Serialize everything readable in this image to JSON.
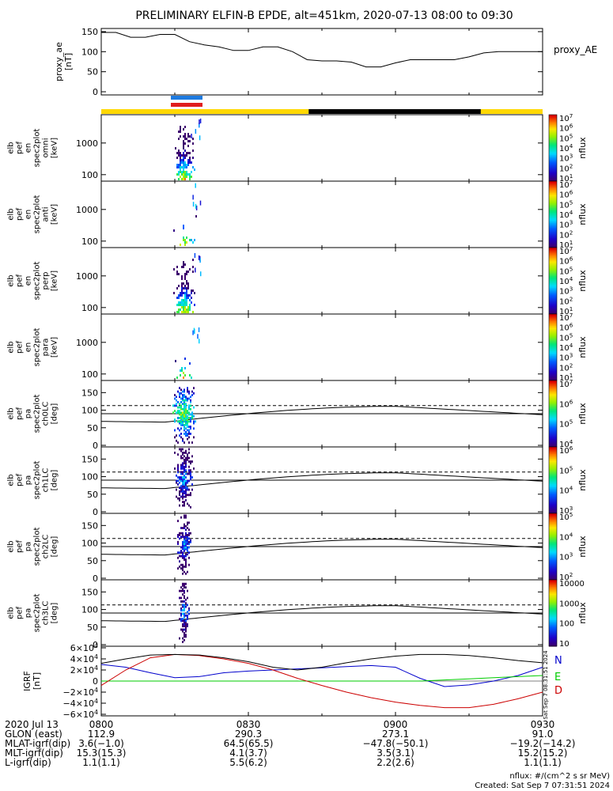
{
  "title": "PRELIMINARY ELFIN-B EPDE, alt=451km, 2020-07-13 08:00 to 09:30",
  "colors": {
    "sun_yellow": "#FFD800",
    "shadow_black": "#000000",
    "science_blue": "#1E7BE0",
    "science_red": "#E01E1E",
    "line_black": "#000000",
    "grf_north": "#0000CC",
    "grf_east": "#00CC00",
    "grf_down": "#CC0000"
  },
  "chart_data": [
    {
      "type": "line",
      "name": "proxy_ae",
      "ylabel": "proxy_ae\n[nT]",
      "legend": "proxy_AE",
      "ylim": [
        0,
        150
      ],
      "yticks": [
        "0",
        "50",
        "100",
        "150"
      ],
      "x_minutes": [
        0,
        3,
        6,
        9,
        12,
        15,
        18,
        21,
        24,
        27,
        30,
        33,
        36,
        39,
        42,
        45,
        48,
        51,
        54,
        57,
        60,
        63,
        66,
        69,
        72,
        75,
        78,
        81,
        84,
        87,
        90
      ],
      "values": [
        148,
        148,
        136,
        136,
        143,
        143,
        125,
        117,
        112,
        103,
        103,
        112,
        112,
        100,
        80,
        77,
        77,
        74,
        62,
        62,
        72,
        80,
        80,
        80,
        80,
        87,
        97,
        100,
        100,
        100,
        100
      ]
    },
    {
      "type": "heatmap",
      "name": "elb_pef_en_spec2plot_omni",
      "ylabel": "elb\npef\nen\nspec2plot\nomni\n[keV]",
      "yscale": "log",
      "yticks": [
        "100",
        "1000"
      ],
      "colorbar_label": "nflux",
      "colorbar_ticks": [
        "10^1",
        "10^2",
        "10^3",
        "10^4",
        "10^5",
        "10^6",
        "10^7"
      ]
    },
    {
      "type": "heatmap",
      "name": "elb_pef_en_spec2plot_anti",
      "ylabel": "elb\npef\nen\nspec2plot\nanti\n[keV]",
      "yscale": "log",
      "yticks": [
        "100",
        "1000"
      ],
      "colorbar_label": "nflux",
      "colorbar_ticks": [
        "10^1",
        "10^2",
        "10^3",
        "10^4",
        "10^5",
        "10^6",
        "10^7"
      ]
    },
    {
      "type": "heatmap",
      "name": "elb_pef_en_spec2plot_perp",
      "ylabel": "elb\npef\nen\nspec2plot\nperp\n[keV]",
      "yscale": "log",
      "yticks": [
        "100",
        "1000"
      ],
      "colorbar_label": "nflux",
      "colorbar_ticks": [
        "10^1",
        "10^2",
        "10^3",
        "10^4",
        "10^5",
        "10^6",
        "10^7"
      ]
    },
    {
      "type": "heatmap",
      "name": "elb_pef_en_spec2plot_para",
      "ylabel": "elb\npef\nen\nspec2plot\npara\n[keV]",
      "yscale": "log",
      "yticks": [
        "100",
        "1000"
      ],
      "colorbar_label": "nflux",
      "colorbar_ticks": [
        "10^1",
        "10^2",
        "10^3",
        "10^4",
        "10^5",
        "10^6",
        "10^7"
      ]
    },
    {
      "type": "heatmap",
      "name": "elb_pef_pa_spec2plot_ch0LC",
      "ylabel": "elb\npef\npa\nspec2plot\nch0LC\n[deg]",
      "ylim": [
        0,
        180
      ],
      "yticks": [
        "0",
        "50",
        "100",
        "150"
      ],
      "colorbar_label": "nflux",
      "colorbar_ticks": [
        "10^4",
        "10^5",
        "10^6",
        "10^7"
      ]
    },
    {
      "type": "heatmap",
      "name": "elb_pef_pa_spec2plot_ch1LC",
      "ylabel": "elb\npef\npa\nspec2plot\nch1LC\n[deg]",
      "ylim": [
        0,
        180
      ],
      "yticks": [
        "0",
        "50",
        "100",
        "150"
      ],
      "colorbar_label": "nflux",
      "colorbar_ticks": [
        "10^3",
        "10^4",
        "10^5",
        "10^6"
      ]
    },
    {
      "type": "heatmap",
      "name": "elb_pef_pa_spec2plot_ch2LC",
      "ylabel": "elb\npef\npa\nspec2plot\nch2LC\n[deg]",
      "ylim": [
        0,
        180
      ],
      "yticks": [
        "0",
        "50",
        "100",
        "150"
      ],
      "colorbar_label": "nflux",
      "colorbar_ticks": [
        "10^2",
        "10^3",
        "10^4",
        "10^5"
      ]
    },
    {
      "type": "heatmap",
      "name": "elb_pef_pa_spec2plot_ch3LC",
      "ylabel": "elb\npef\npa\nspec2plot\nch3LC\n[deg]",
      "ylim": [
        0,
        180
      ],
      "yticks": [
        "0",
        "50",
        "100",
        "150"
      ],
      "colorbar_label": "nflux",
      "colorbar_ticks": [
        "10",
        "100",
        "1000",
        "10000"
      ]
    },
    {
      "type": "line",
      "name": "IGRF",
      "ylabel": "IGRF\n[nT]",
      "ylim": [
        -60000,
        60000
      ],
      "yticks": [
        "6×10^4",
        "4×10^4",
        "2×10^4",
        "0",
        "−2×10^4",
        "−4×10^4",
        "−6×10^4"
      ],
      "legend": [
        "N",
        "E",
        "D"
      ],
      "x_minutes": [
        0,
        5,
        10,
        15,
        20,
        25,
        30,
        35,
        40,
        45,
        50,
        55,
        60,
        65,
        70,
        75,
        80,
        85,
        90
      ],
      "series": [
        {
          "name": "N",
          "values": [
            30000,
            25000,
            15000,
            6000,
            8000,
            15000,
            18000,
            20000,
            22000,
            24000,
            26000,
            28000,
            25000,
            5000,
            -10000,
            -7000,
            0,
            10000,
            25000
          ]
        },
        {
          "name": "E",
          "values": [
            0,
            0,
            0,
            0,
            0,
            0,
            0,
            0,
            0,
            0,
            0,
            0,
            0,
            0,
            2000,
            4000,
            6000,
            8000,
            10000
          ]
        },
        {
          "name": "D",
          "values": [
            -8000,
            20000,
            42000,
            48000,
            46000,
            40000,
            32000,
            20000,
            5000,
            -8000,
            -20000,
            -30000,
            -38000,
            -44000,
            -48000,
            -48000,
            -42000,
            -32000,
            -20000
          ]
        },
        {
          "name": "",
          "values": [
            32000,
            40000,
            47000,
            48000,
            47000,
            42000,
            35000,
            25000,
            20000,
            25000,
            33000,
            40000,
            45000,
            48000,
            48000,
            46000,
            42000,
            37000,
            33000
          ]
        }
      ]
    }
  ],
  "side_label_right": [
    "Sat Sep  7 08:31:51 2024"
  ],
  "x_axis": {
    "ticks": [
      "0800",
      "0830",
      "0900",
      "0930"
    ],
    "rows": [
      {
        "label": "2020 Jul 13",
        "values": [
          "0800",
          "0830",
          "0900",
          "0930"
        ]
      },
      {
        "label": "GLON (east)",
        "values": [
          "112.9",
          "290.3",
          "273.1",
          "91.0"
        ]
      },
      {
        "label": "MLAT-igrf(dip)",
        "values": [
          "3.6(−1.0)",
          "64.5(65.5)",
          "−47.8(−50.1)",
          "−19.2(−14.2)"
        ]
      },
      {
        "label": "MLT-igrf(dip)",
        "values": [
          "15.3(15.3)",
          "4.1(3.7)",
          "3.5(3.1)",
          "15.2(15.2)"
        ]
      },
      {
        "label": "L-igrf(dip)",
        "values": [
          "1.1(1.1)",
          "5.5(6.2)",
          "2.2(2.6)",
          "1.1(1.1)"
        ]
      }
    ]
  },
  "footer": {
    "units": "nflux: #/(cm^2 s sr MeV)",
    "created": "Created: Sat Sep  7 07:31:51 2024"
  }
}
